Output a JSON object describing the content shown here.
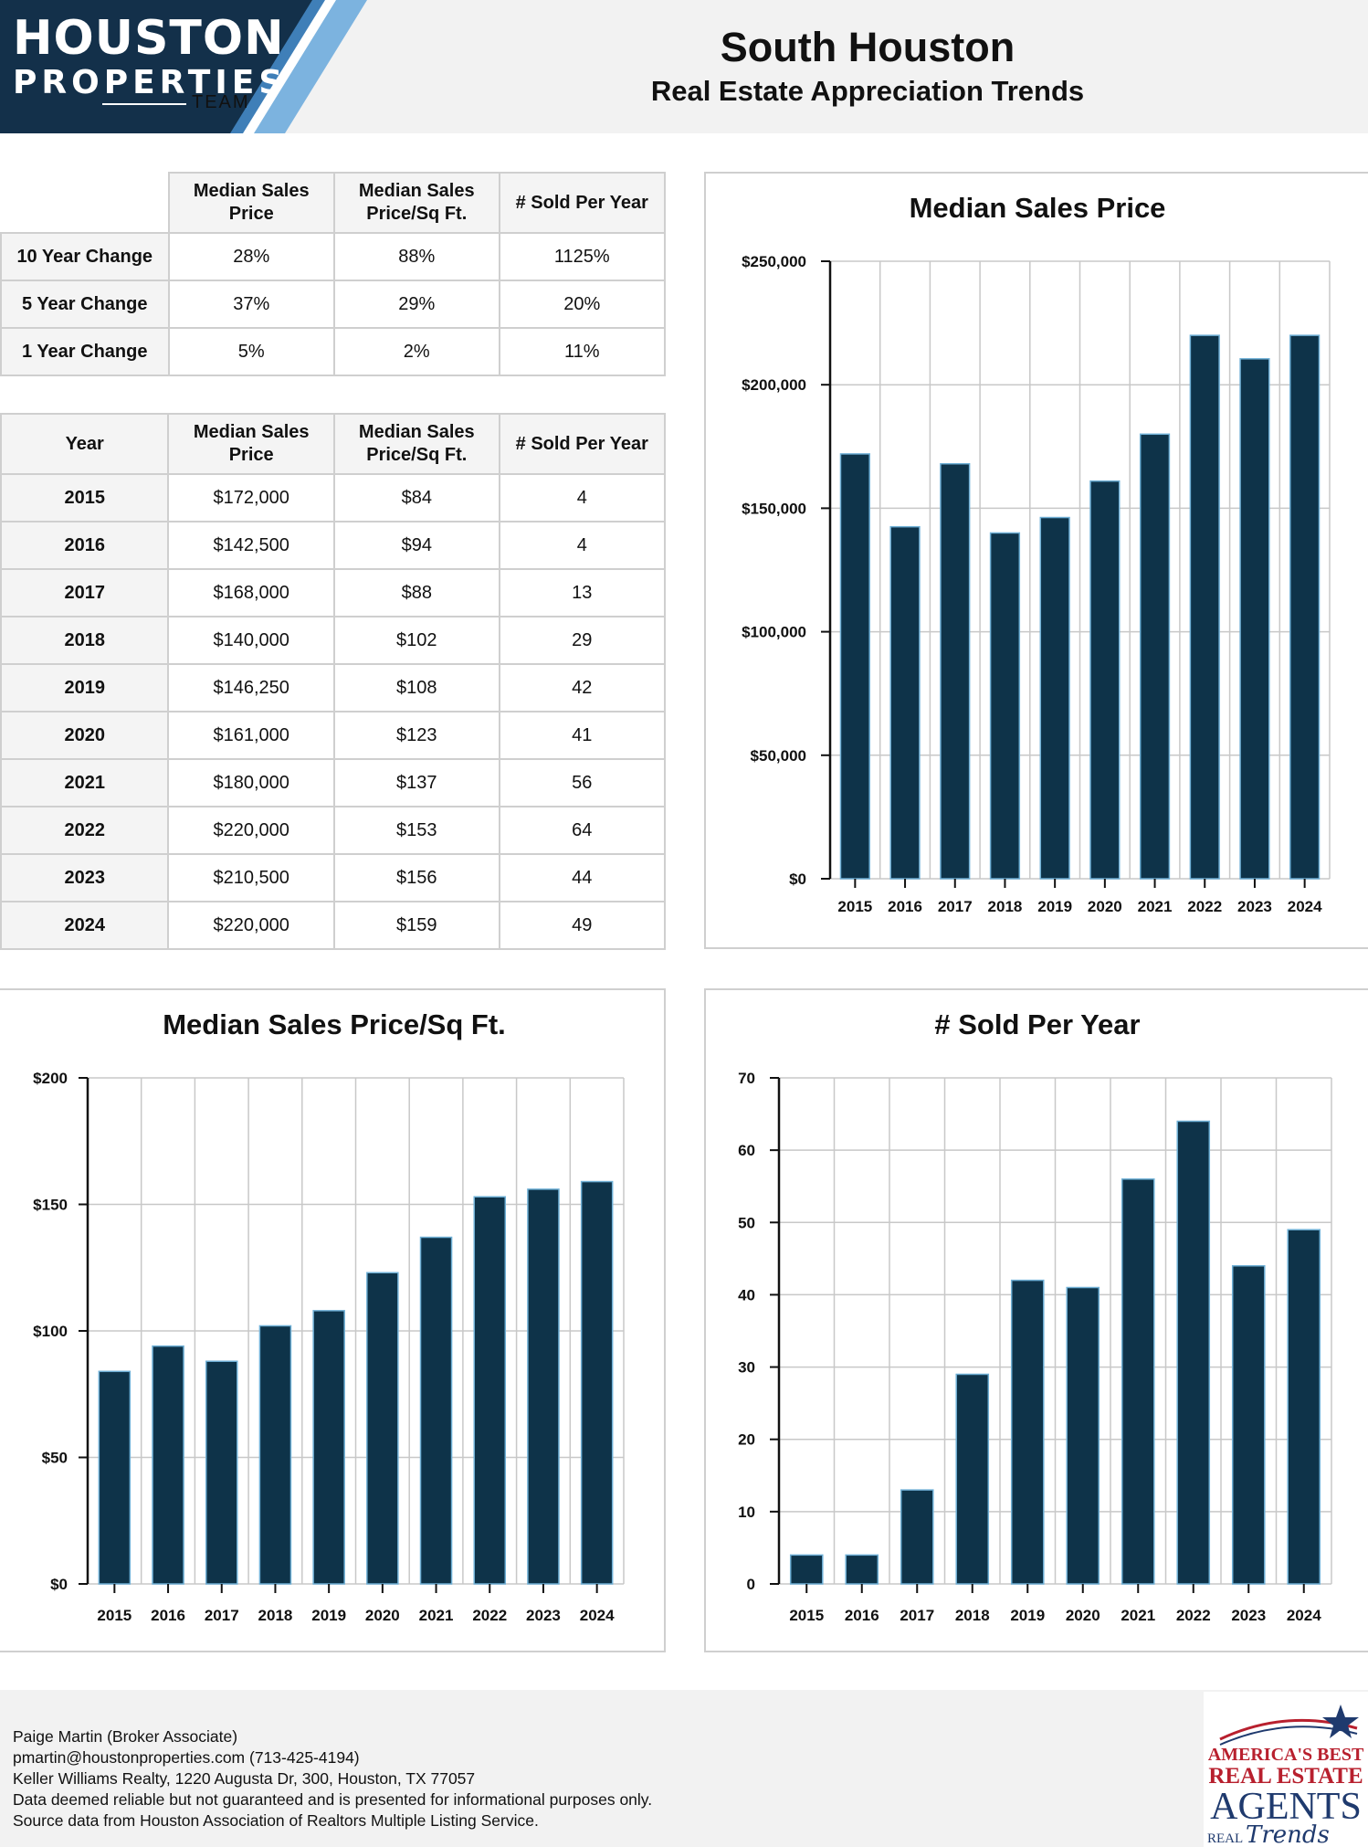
{
  "header": {
    "logo_line1": "HOUSTON",
    "logo_line2": "PROPERTIES",
    "logo_line3": "TEAM",
    "title": "South Houston",
    "subtitle": "Real Estate Appreciation Trends"
  },
  "change_table": {
    "columns": [
      "",
      "Median Sales Price",
      "Median Sales Price/Sq Ft.",
      "# Sold Per Year"
    ],
    "rows": [
      {
        "label": "10 Year Change",
        "cells": [
          "28%",
          "88%",
          "1125%"
        ]
      },
      {
        "label": "5 Year Change",
        "cells": [
          "37%",
          "29%",
          "20%"
        ]
      },
      {
        "label": "1 Year Change",
        "cells": [
          "5%",
          "2%",
          "11%"
        ]
      }
    ]
  },
  "year_table": {
    "columns": [
      "Year",
      "Median Sales Price",
      "Median Sales Price/Sq Ft.",
      "# Sold Per Year"
    ],
    "rows": [
      {
        "label": "2015",
        "cells": [
          "$172,000",
          "$84",
          "4"
        ]
      },
      {
        "label": "2016",
        "cells": [
          "$142,500",
          "$94",
          "4"
        ]
      },
      {
        "label": "2017",
        "cells": [
          "$168,000",
          "$88",
          "13"
        ]
      },
      {
        "label": "2018",
        "cells": [
          "$140,000",
          "$102",
          "29"
        ]
      },
      {
        "label": "2019",
        "cells": [
          "$146,250",
          "$108",
          "42"
        ]
      },
      {
        "label": "2020",
        "cells": [
          "$161,000",
          "$123",
          "41"
        ]
      },
      {
        "label": "2021",
        "cells": [
          "$180,000",
          "$137",
          "56"
        ]
      },
      {
        "label": "2022",
        "cells": [
          "$220,000",
          "$153",
          "64"
        ]
      },
      {
        "label": "2023",
        "cells": [
          "$210,500",
          "$156",
          "44"
        ]
      },
      {
        "label": "2024",
        "cells": [
          "$220,000",
          "$159",
          "49"
        ]
      }
    ]
  },
  "chart_data": [
    {
      "id": "price",
      "type": "bar",
      "title": "Median Sales Price",
      "categories": [
        "2015",
        "2016",
        "2017",
        "2018",
        "2019",
        "2020",
        "2021",
        "2022",
        "2023",
        "2024"
      ],
      "values": [
        172000,
        142500,
        168000,
        140000,
        146250,
        161000,
        180000,
        220000,
        210500,
        220000
      ],
      "yticks": [
        0,
        50000,
        100000,
        150000,
        200000,
        250000
      ],
      "ytick_labels": [
        "$0",
        "$50,000",
        "$100,000",
        "$150,000",
        "$200,000",
        "$250,000"
      ],
      "ylim": [
        0,
        250000
      ],
      "xlabel": "",
      "ylabel": "",
      "grid": true
    },
    {
      "id": "sqft",
      "type": "bar",
      "title": "Median Sales Price/Sq Ft.",
      "categories": [
        "2015",
        "2016",
        "2017",
        "2018",
        "2019",
        "2020",
        "2021",
        "2022",
        "2023",
        "2024"
      ],
      "values": [
        84,
        94,
        88,
        102,
        108,
        123,
        137,
        153,
        156,
        159
      ],
      "yticks": [
        0,
        50,
        100,
        150,
        200
      ],
      "ytick_labels": [
        "$0",
        "$50",
        "$100",
        "$150",
        "$200"
      ],
      "ylim": [
        0,
        200
      ],
      "xlabel": "",
      "ylabel": "",
      "grid": true
    },
    {
      "id": "sold",
      "type": "bar",
      "title": "# Sold Per Year",
      "categories": [
        "2015",
        "2016",
        "2017",
        "2018",
        "2019",
        "2020",
        "2021",
        "2022",
        "2023",
        "2024"
      ],
      "values": [
        4,
        4,
        13,
        29,
        42,
        41,
        56,
        64,
        44,
        49
      ],
      "yticks": [
        0,
        10,
        20,
        30,
        40,
        50,
        60,
        70
      ],
      "ytick_labels": [
        "0",
        "10",
        "20",
        "30",
        "40",
        "50",
        "60",
        "70"
      ],
      "ylim": [
        0,
        70
      ],
      "xlabel": "",
      "ylabel": "",
      "grid": true
    }
  ],
  "footer": {
    "lines": [
      "Paige Martin (Broker Associate)",
      "pmartin@houstonproperties.com (713-425-4194)",
      "Keller Williams Realty, 1220 Augusta Dr, 300, Houston, TX 77057",
      "Data deemed reliable but not guaranteed and is presented for informational purposes only.",
      "Source data from Houston Association of Realtors Multiple Listing Service."
    ],
    "badge": {
      "line1": "AMERICA'S BEST",
      "line2": "REAL ESTATE",
      "line3": "AGENTS",
      "line4": "REAL",
      "line5": "Trends"
    }
  },
  "colors": {
    "bar": "#0e3349",
    "bar_outline": "#6fb0d6",
    "logo_navy": "#13304a",
    "logo_stripe": "#7cb3df",
    "badge_red": "#b8202e",
    "badge_navy": "#1f3a6e"
  }
}
